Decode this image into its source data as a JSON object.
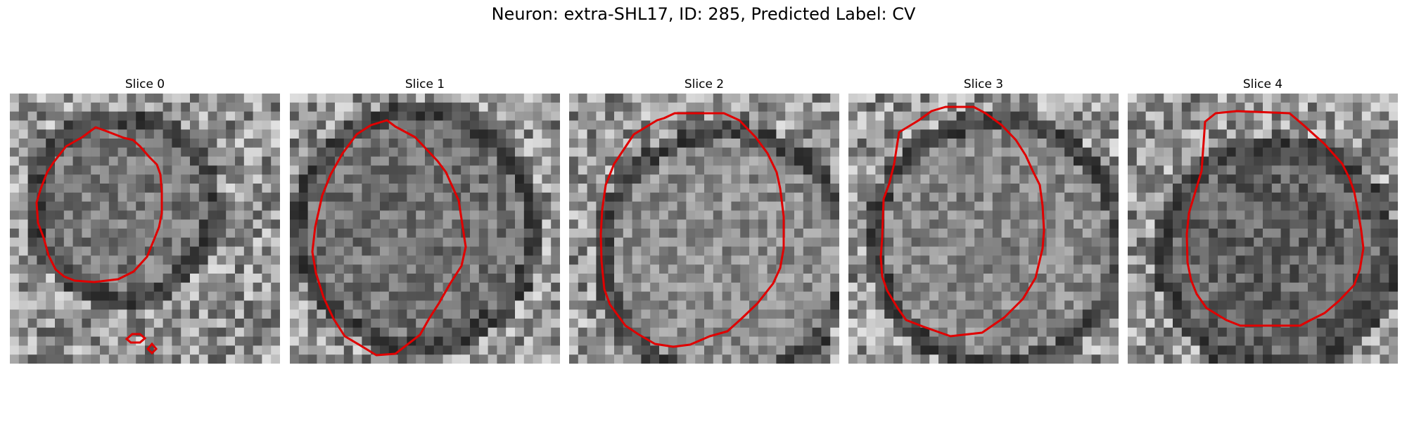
{
  "figure": {
    "title": "Neuron: extra-SHL17, ID: 285, Predicted Label: CV",
    "contour_color": "#e00000",
    "image_colormap": "grayscale",
    "slices": [
      {
        "title": "Slice 0"
      },
      {
        "title": "Slice 1"
      },
      {
        "title": "Slice 2"
      },
      {
        "title": "Slice 3"
      },
      {
        "title": "Slice 4"
      }
    ]
  }
}
